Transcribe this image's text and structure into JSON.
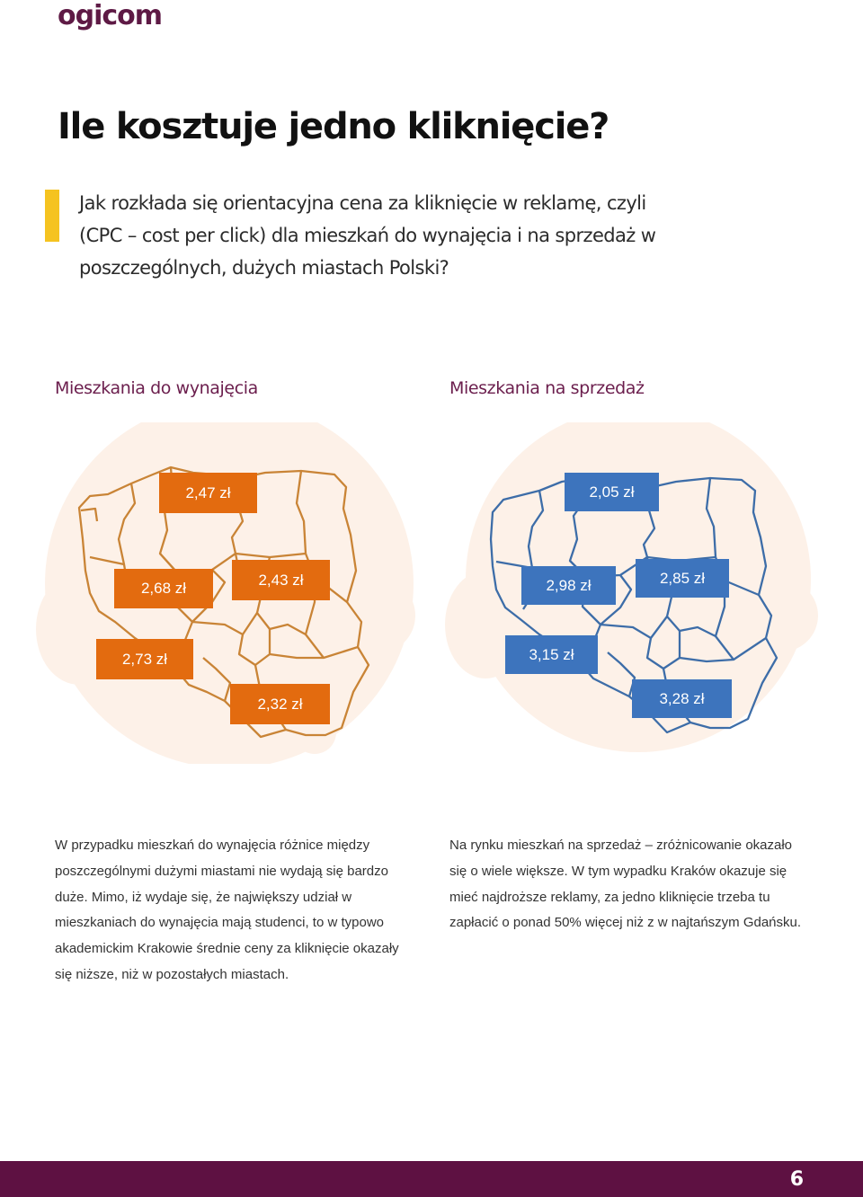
{
  "brand": {
    "logo_text": "ogicom",
    "color": "#5e1a45"
  },
  "title": "Ile kosztuje jedno kliknięcie?",
  "subtitle": "Jak rozkłada się orientacyjna cena za kliknięcie w reklamę, czyli (CPC – cost per click) dla mieszkań do wynajęcia i na sprzedaż w poszczególnych, dużych miastach Polski?",
  "accent_color": "#f5c320",
  "rent": {
    "title": "Mieszkania do wynajęcia",
    "color": "#e36b0f",
    "prices": [
      "2,47 zł",
      "2,68 zł",
      "2,43 zł",
      "2,73 zł",
      "2,32 zł"
    ]
  },
  "sale": {
    "title": "Mieszkania na sprzedaż",
    "color": "#3d74bd",
    "prices": [
      "2,05 zł",
      "2,98 zł",
      "2,85 zł",
      "3,15 zł",
      "3,28 zł"
    ]
  },
  "paragraphs": {
    "rent": "W przypadku mieszkań do wynajęcia różnice między poszczególnymi dużymi miastami nie wydają się bardzo duże. Mimo, iż wydaje się, że największy udział w mieszkaniach do wynajęcia mają studenci, to w typowo akademickim Krakowie średnie ceny za kliknięcie okazały się niższe, niż w pozostałych miastach.",
    "sale": "Na rynku mieszkań na sprzedaż – zróżnicowanie okazało się o wiele większe. W tym wypadku Kraków okazuje się mieć najdroższe reklamy, za jedno kliknięcie trzeba tu zapłacić o ponad 50% więcej niż z w najtańszym Gdańsku."
  },
  "footer": {
    "page_number": "6",
    "color": "#5e1142"
  }
}
